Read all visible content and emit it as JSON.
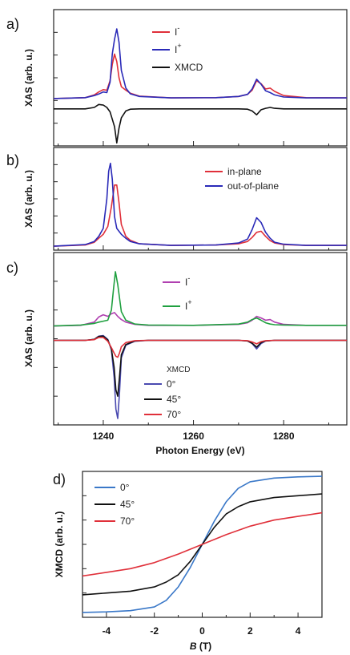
{
  "chart_data": [
    {
      "id": "a",
      "type": "line",
      "panel_label": "a)",
      "ylabel": "XAS (arb. u.)",
      "xlim": [
        1229,
        1294
      ],
      "ylim": [
        -1.6,
        3.0
      ],
      "colors": {
        "I-": "#e0303a",
        "I+": "#2a2ab8",
        "XMCD": "#111111"
      },
      "legend": {
        "position": "top-center",
        "entries": [
          {
            "label": "I",
            "sup": "-",
            "series": "I-"
          },
          {
            "label": "I",
            "sup": "+",
            "series": "I+"
          },
          {
            "label": "XMCD",
            "sup": "",
            "series": "XMCD"
          }
        ]
      },
      "series": [
        {
          "name": "I-",
          "x": [
            1229,
            1236,
            1238,
            1239,
            1240,
            1240.8,
            1241.5,
            1242,
            1242.5,
            1243,
            1243.5,
            1244,
            1245,
            1246,
            1248,
            1255,
            1265,
            1270,
            1272,
            1273,
            1274,
            1275,
            1276,
            1277,
            1278,
            1280,
            1285,
            1294
          ],
          "y": [
            0,
            0.03,
            0.12,
            0.22,
            0.3,
            0.28,
            0.6,
            1.15,
            1.5,
            1.25,
            0.7,
            0.4,
            0.28,
            0.18,
            0.08,
            0.02,
            0.03,
            0.07,
            0.14,
            0.28,
            0.6,
            0.5,
            0.32,
            0.35,
            0.24,
            0.1,
            0.03,
            0.02
          ]
        },
        {
          "name": "I+",
          "x": [
            1229,
            1236,
            1238,
            1239,
            1240,
            1240.8,
            1241.5,
            1242,
            1242.5,
            1243,
            1243.5,
            1244,
            1245,
            1246,
            1248,
            1255,
            1265,
            1270,
            1272,
            1273,
            1274,
            1275,
            1276,
            1277,
            1278,
            1280,
            1285,
            1294
          ],
          "y": [
            0,
            0.03,
            0.1,
            0.15,
            0.22,
            0.2,
            0.55,
            1.5,
            2.0,
            2.35,
            1.9,
            0.95,
            0.35,
            0.16,
            0.07,
            0.02,
            0.03,
            0.07,
            0.14,
            0.32,
            0.65,
            0.48,
            0.26,
            0.2,
            0.12,
            0.05,
            0.02,
            0.02
          ]
        },
        {
          "name": "XMCD",
          "x": [
            1229,
            1236,
            1238,
            1239,
            1240,
            1240.8,
            1241.5,
            1242,
            1242.5,
            1243,
            1243.5,
            1244,
            1245,
            1246,
            1248,
            1255,
            1265,
            1270,
            1272,
            1273,
            1274,
            1275,
            1276,
            1277,
            1278,
            1280,
            1285,
            1294
          ],
          "y": [
            -0.35,
            -0.35,
            -0.3,
            -0.2,
            -0.22,
            -0.3,
            -0.45,
            -0.7,
            -0.95,
            -1.5,
            -1.0,
            -0.65,
            -0.42,
            -0.36,
            -0.35,
            -0.35,
            -0.35,
            -0.35,
            -0.36,
            -0.42,
            -0.55,
            -0.38,
            -0.33,
            -0.3,
            -0.33,
            -0.35,
            -0.35,
            -0.35
          ]
        }
      ]
    },
    {
      "id": "b",
      "type": "line",
      "panel_label": "b)",
      "ylabel": "XAS (arb. u.)",
      "xlim": [
        1229,
        1294
      ],
      "ylim": [
        -0.1,
        2.5
      ],
      "colors": {
        "in-plane": "#e0303a",
        "out-of-plane": "#2a2ab8"
      },
      "legend": {
        "position": "top-right",
        "entries": [
          {
            "label": "in-plane",
            "series": "in-plane"
          },
          {
            "label": "out-of-plane",
            "series": "out-of-plane"
          }
        ]
      },
      "series": [
        {
          "name": "in-plane",
          "x": [
            1229,
            1236,
            1238,
            1239,
            1240,
            1241,
            1241.8,
            1242.5,
            1243,
            1243.5,
            1244,
            1245,
            1246,
            1248,
            1255,
            1265,
            1270,
            1272,
            1273,
            1274,
            1275,
            1276,
            1277,
            1278,
            1280,
            1285,
            1294
          ],
          "y": [
            0,
            0.03,
            0.1,
            0.2,
            0.3,
            0.5,
            1.0,
            1.55,
            1.55,
            1.1,
            0.55,
            0.25,
            0.15,
            0.06,
            0.02,
            0.03,
            0.06,
            0.12,
            0.22,
            0.35,
            0.38,
            0.25,
            0.14,
            0.08,
            0.04,
            0.02,
            0.02
          ]
        },
        {
          "name": "out-of-plane",
          "x": [
            1229,
            1236,
            1238,
            1239,
            1240,
            1240.8,
            1241.2,
            1241.6,
            1242,
            1242.5,
            1243,
            1244,
            1245,
            1246,
            1248,
            1255,
            1265,
            1270,
            1272,
            1273,
            1274,
            1275,
            1276,
            1277,
            1278,
            1280,
            1285,
            1294
          ],
          "y": [
            0,
            0.04,
            0.12,
            0.25,
            0.45,
            1.2,
            1.9,
            2.1,
            1.7,
            0.75,
            0.45,
            0.3,
            0.2,
            0.12,
            0.06,
            0.02,
            0.03,
            0.08,
            0.18,
            0.42,
            0.72,
            0.6,
            0.35,
            0.2,
            0.1,
            0.05,
            0.02,
            0.02
          ]
        }
      ]
    },
    {
      "id": "c",
      "type": "line",
      "panel_label": "c)",
      "ylabel": "XAS (arb. u.)",
      "xlabel": "Photon Energy (eV)",
      "xlim": [
        1229,
        1294
      ],
      "ylim": [
        -3.1,
        2.3
      ],
      "xticks": [
        1240,
        1260,
        1280
      ],
      "colors": {
        "I-": "#b040b0",
        "I+": "#20a040",
        "0°": "#4a4ab0",
        "45°": "#111111",
        "70°": "#e0303a"
      },
      "legend": {
        "position": "top-center",
        "entries": [
          {
            "label": "I",
            "sup": "-",
            "series": "I-"
          },
          {
            "label": "I",
            "sup": "+",
            "series": "I+"
          }
        ]
      },
      "legend2": {
        "title": "XMCD",
        "position": "bottom-center",
        "entries": [
          {
            "label": "0°",
            "series": "0°"
          },
          {
            "label": "45°",
            "series": "45°"
          },
          {
            "label": "70°",
            "series": "70°"
          }
        ]
      },
      "series": [
        {
          "name": "I-",
          "x": [
            1229,
            1235,
            1238,
            1239,
            1240,
            1241,
            1241.8,
            1242.5,
            1243.2,
            1244,
            1245,
            1247,
            1250,
            1260,
            1270,
            1272,
            1273,
            1274,
            1275,
            1276,
            1277,
            1278,
            1280,
            1285,
            1294
          ],
          "y": [
            0,
            0.02,
            0.12,
            0.28,
            0.35,
            0.3,
            0.38,
            0.42,
            0.3,
            0.2,
            0.12,
            0.05,
            0.02,
            0.02,
            0.05,
            0.1,
            0.18,
            0.3,
            0.25,
            0.18,
            0.2,
            0.12,
            0.05,
            0.02,
            0.02
          ]
        },
        {
          "name": "I+",
          "x": [
            1229,
            1235,
            1238,
            1239,
            1240,
            1241,
            1241.8,
            1242.3,
            1242.7,
            1243.2,
            1244,
            1245,
            1247,
            1250,
            1260,
            1270,
            1272,
            1273,
            1274,
            1275,
            1276,
            1277,
            1278,
            1280,
            1285,
            1294
          ],
          "y": [
            0,
            0.03,
            0.08,
            0.12,
            0.15,
            0.18,
            0.5,
            1.2,
            1.7,
            1.3,
            0.45,
            0.18,
            0.06,
            0.03,
            0.02,
            0.06,
            0.12,
            0.2,
            0.25,
            0.18,
            0.1,
            0.06,
            0.04,
            0.03,
            0.02,
            0.02
          ]
        },
        {
          "name": "0°",
          "x": [
            1229,
            1236,
            1238,
            1239,
            1240,
            1241,
            1241.8,
            1242.4,
            1242.8,
            1243.2,
            1243.6,
            1244,
            1245,
            1247,
            1250,
            1260,
            1270,
            1272,
            1273,
            1274,
            1275,
            1276,
            1278,
            1282,
            1294
          ],
          "y": [
            -0.45,
            -0.45,
            -0.42,
            -0.32,
            -0.3,
            -0.42,
            -0.75,
            -1.6,
            -2.6,
            -2.9,
            -2.1,
            -1.0,
            -0.6,
            -0.48,
            -0.45,
            -0.45,
            -0.45,
            -0.47,
            -0.55,
            -0.72,
            -0.55,
            -0.47,
            -0.45,
            -0.45,
            -0.45
          ]
        },
        {
          "name": "45°",
          "x": [
            1229,
            1236,
            1238,
            1239,
            1240,
            1241,
            1241.8,
            1242.4,
            1242.8,
            1243.2,
            1243.6,
            1244,
            1245,
            1247,
            1250,
            1260,
            1270,
            1272,
            1273,
            1274,
            1275,
            1276,
            1278,
            1282,
            1294
          ],
          "y": [
            -0.45,
            -0.45,
            -0.42,
            -0.33,
            -0.32,
            -0.44,
            -0.72,
            -1.3,
            -2.0,
            -2.2,
            -1.6,
            -0.9,
            -0.58,
            -0.47,
            -0.45,
            -0.45,
            -0.45,
            -0.47,
            -0.54,
            -0.66,
            -0.52,
            -0.47,
            -0.45,
            -0.45,
            -0.45
          ]
        },
        {
          "name": "70°",
          "x": [
            1229,
            1236,
            1238,
            1239,
            1240,
            1241,
            1241.8,
            1242.4,
            1242.8,
            1243.2,
            1243.6,
            1244,
            1245,
            1247,
            1250,
            1260,
            1270,
            1272,
            1273,
            1274,
            1275,
            1276,
            1278,
            1282,
            1294
          ],
          "y": [
            -0.45,
            -0.45,
            -0.43,
            -0.36,
            -0.36,
            -0.48,
            -0.68,
            -0.85,
            -0.95,
            -0.98,
            -0.85,
            -0.65,
            -0.52,
            -0.46,
            -0.45,
            -0.45,
            -0.45,
            -0.46,
            -0.5,
            -0.56,
            -0.49,
            -0.46,
            -0.45,
            -0.45,
            -0.45
          ]
        }
      ]
    },
    {
      "id": "d",
      "type": "line",
      "panel_label": "d)",
      "ylabel": "XMCD (arb. u.)",
      "xlabel_italic": "B",
      "xlabel_rest": " (T)",
      "xlim": [
        -5,
        5
      ],
      "ylim": [
        -1.2,
        1.2
      ],
      "xticks": [
        -4,
        -2,
        0,
        2,
        4
      ],
      "colors": {
        "0°": "#3a78c8",
        "45°": "#111111",
        "70°": "#e0303a"
      },
      "legend": {
        "position": "top-left",
        "entries": [
          {
            "label": "0°",
            "series": "0°"
          },
          {
            "label": "45°",
            "series": "45°"
          },
          {
            "label": "70°",
            "series": "70°"
          }
        ]
      },
      "series": [
        {
          "name": "0°",
          "x": [
            -5,
            -4,
            -3,
            -2,
            -1.5,
            -1,
            -0.5,
            0,
            0.5,
            1,
            1.5,
            2,
            3,
            4,
            5
          ],
          "y": [
            -1.12,
            -1.11,
            -1.09,
            -1.03,
            -0.92,
            -0.7,
            -0.38,
            0,
            0.38,
            0.7,
            0.92,
            1.03,
            1.09,
            1.11,
            1.12
          ]
        },
        {
          "name": "45°",
          "x": [
            -5,
            -4,
            -3,
            -2,
            -1.5,
            -1,
            -0.5,
            0,
            0.5,
            1,
            1.5,
            2,
            3,
            4,
            5
          ],
          "y": [
            -0.83,
            -0.8,
            -0.77,
            -0.7,
            -0.62,
            -0.5,
            -0.28,
            0,
            0.28,
            0.5,
            0.62,
            0.7,
            0.77,
            0.8,
            0.83
          ]
        },
        {
          "name": "70°",
          "x": [
            -5,
            -4,
            -3,
            -2,
            -1,
            0,
            1,
            2,
            3,
            4,
            5
          ],
          "y": [
            -0.52,
            -0.46,
            -0.4,
            -0.3,
            -0.16,
            0,
            0.16,
            0.3,
            0.4,
            0.46,
            0.52
          ]
        }
      ]
    }
  ]
}
